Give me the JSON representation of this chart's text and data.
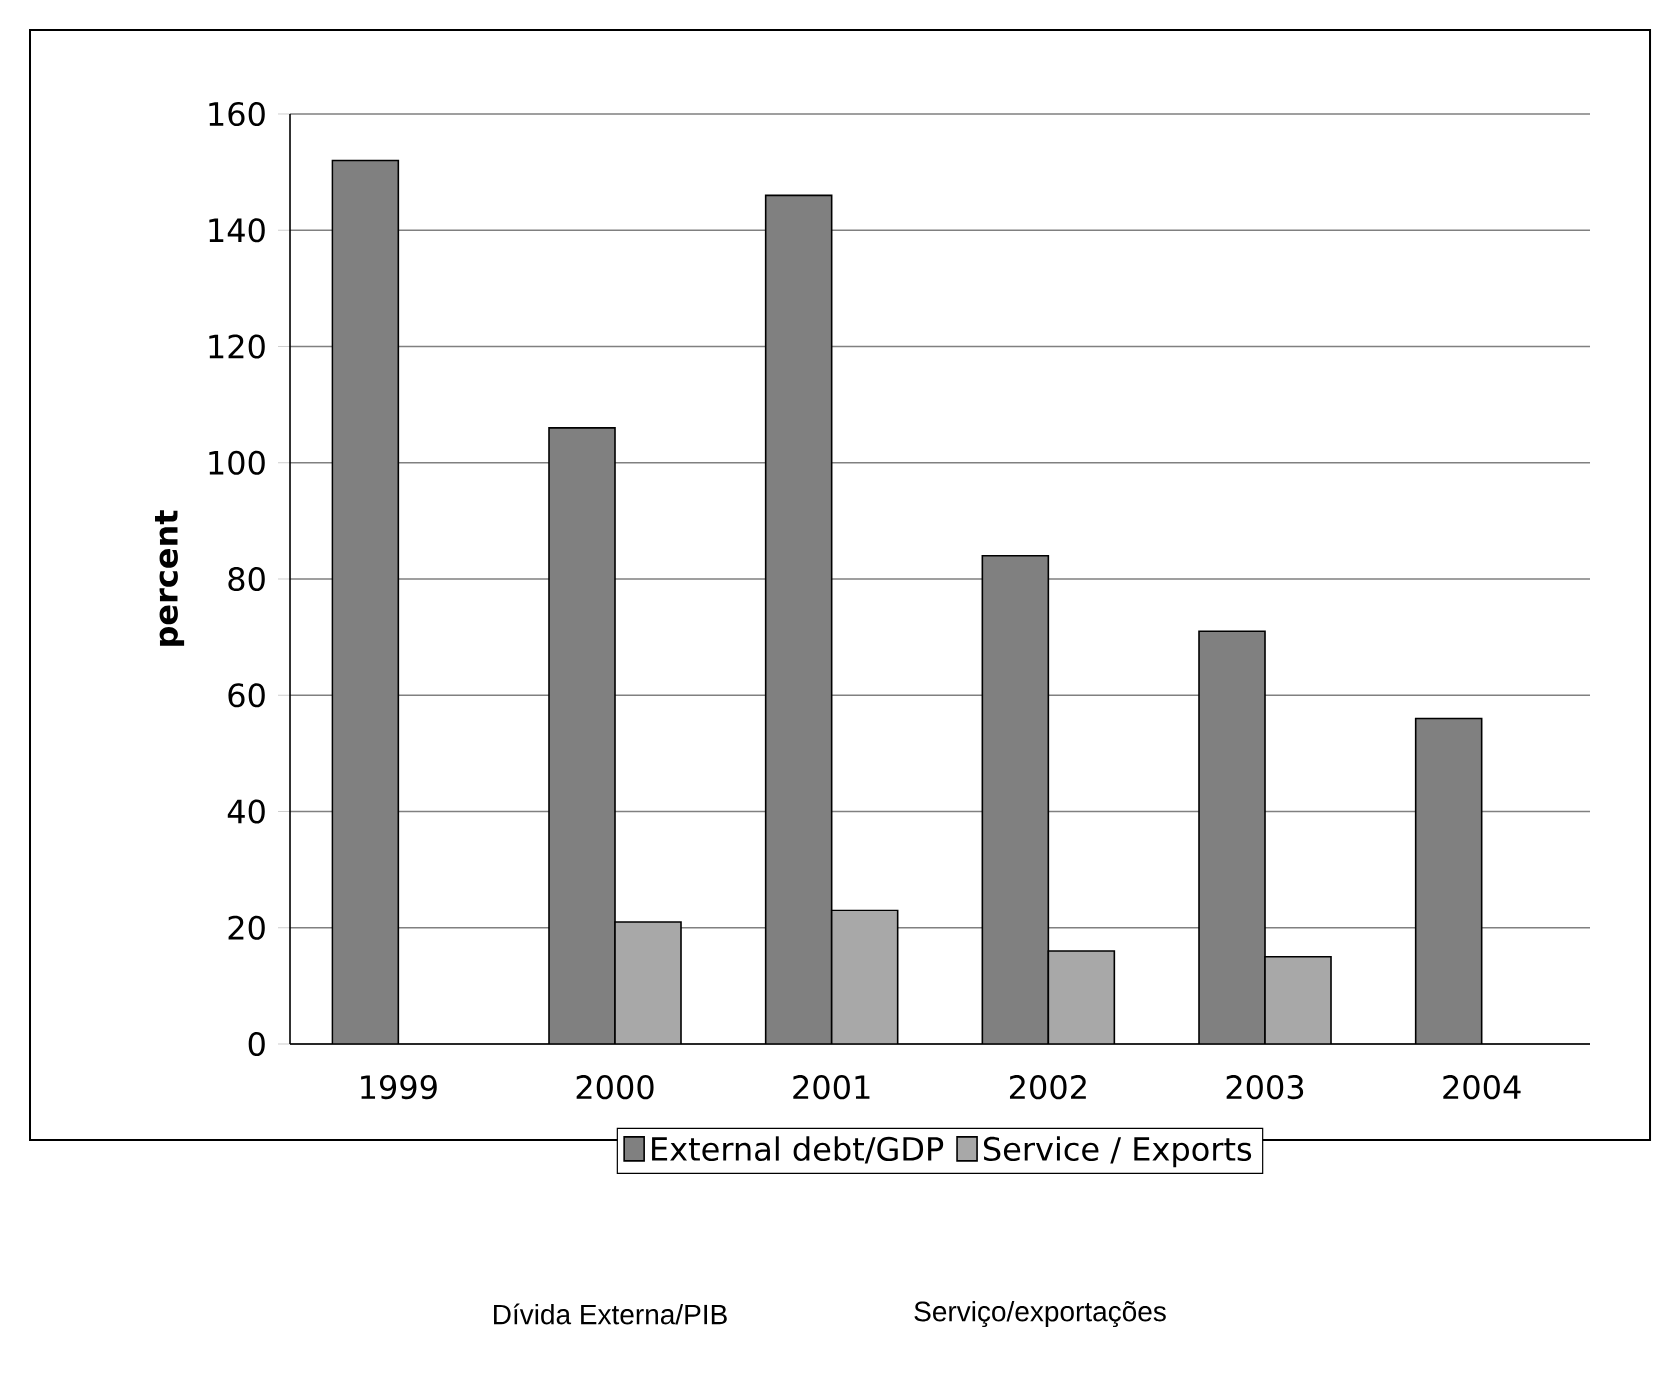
{
  "chart_data": {
    "type": "bar",
    "ylabel": "percent",
    "categories": [
      "1999",
      "2000",
      "2001",
      "2002",
      "2003",
      "2004"
    ],
    "series": [
      {
        "name": "External debt/GDP",
        "color": "#808080",
        "values": [
          152,
          106,
          146,
          84,
          71,
          56
        ]
      },
      {
        "name": "Service / Exports",
        "color": "#a8a8a8",
        "values": [
          null,
          21,
          23,
          16,
          15,
          null
        ]
      }
    ],
    "ylim": [
      0,
      160
    ],
    "yticks": [
      0,
      20,
      40,
      60,
      80,
      100,
      120,
      140,
      160
    ],
    "grid": "y",
    "legend": "bottom",
    "annotations": [
      "Dívida Externa/PIB",
      "Serviço/exportações"
    ]
  }
}
